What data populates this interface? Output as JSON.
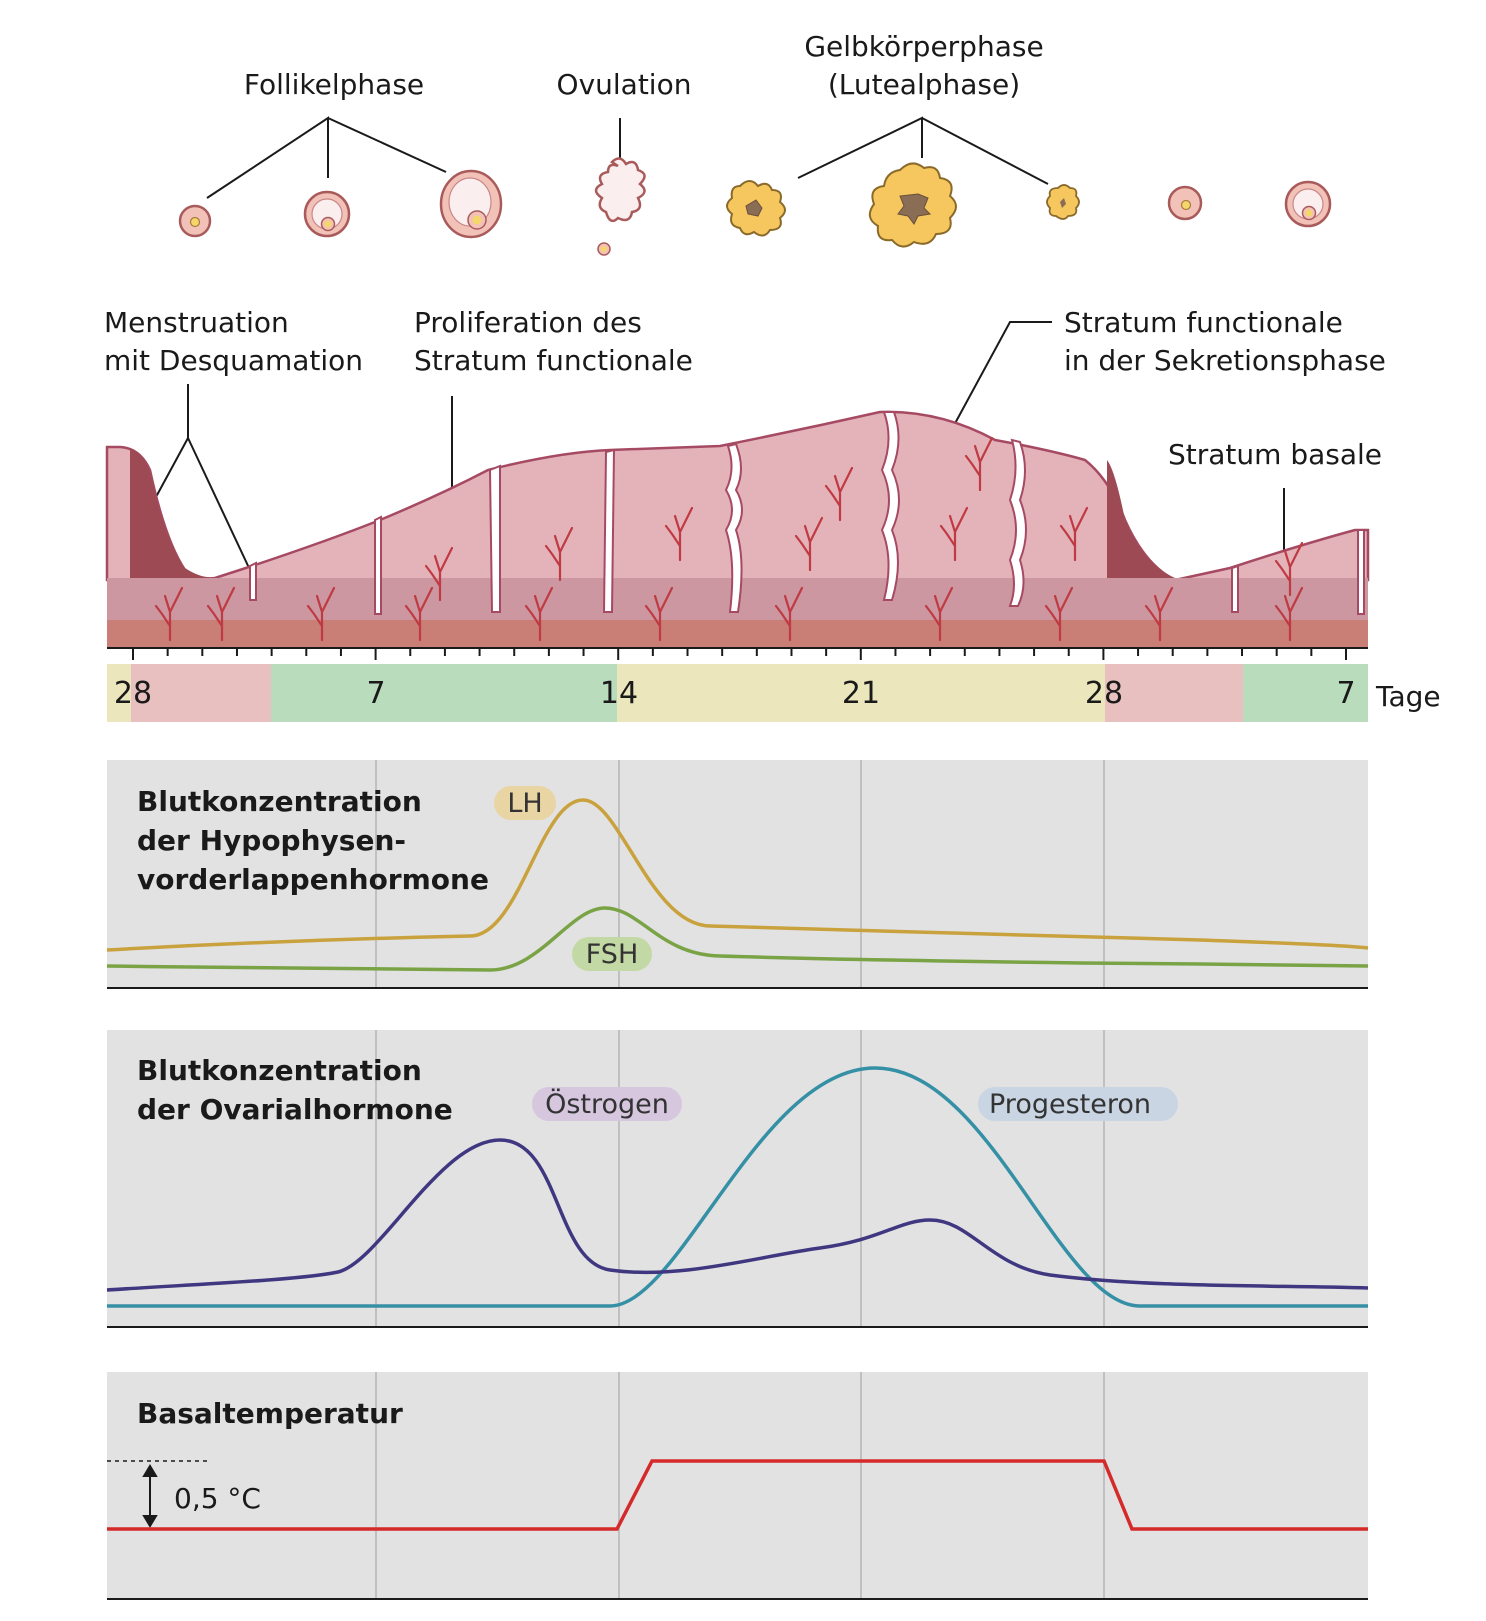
{
  "ovary": {
    "follicular_label": "Follikelphase",
    "ovulation_label": "Ovulation",
    "luteal_label_1": "Gelbkörperphase",
    "luteal_label_2": "(Lutealphase)"
  },
  "endometrium": {
    "menstruation_1": "Menstruation",
    "menstruation_2": "mit Desquamation",
    "proliferation_1": "Proliferation des",
    "proliferation_2": "Stratum functionale",
    "secretion_1": "Stratum functionale",
    "secretion_2": "in der Sekretionsphase",
    "basale": "Stratum basale"
  },
  "day_bar": {
    "days": [
      "28",
      "7",
      "14",
      "21",
      "28",
      "7"
    ],
    "unit": "Tage",
    "colors": {
      "menstruation": "#e8c0c0",
      "proliferation": "#b9dcbc",
      "secretion": "#ece6bd"
    }
  },
  "panels": {
    "pituitary": {
      "title_1": "Blutkonzentration",
      "title_2": "der Hypophysen-",
      "title_3": "vorderlappenhormone",
      "lh": "LH",
      "fsh": "FSH"
    },
    "ovarian": {
      "title_1": "Blutkonzentration",
      "title_2": "der Ovarialhormone",
      "estrogen": "Östrogen",
      "progesterone": "Progesteron"
    },
    "temperature": {
      "title": "Basaltemperatur",
      "delta": "0,5 °C"
    }
  },
  "colors": {
    "lh": "#c9a23e",
    "fsh": "#7aa346",
    "estrogen": "#3f3780",
    "progesterone": "#3590a6",
    "temperature": "#d42a2a",
    "panel_bg": "#e2e2e2",
    "tissue": "#e3b3b9",
    "vessel": "#bf3a42"
  }
}
